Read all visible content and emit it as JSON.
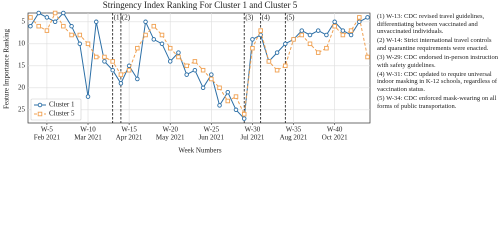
{
  "chart_data": {
    "type": "line",
    "title": "Stringency Index Ranking For Cluster 1 and Cluster 5",
    "x_label": "Week Numbers",
    "y_label": "Feature Importance Ranking",
    "x": [
      3,
      4,
      5,
      6,
      7,
      8,
      9,
      10,
      11,
      12,
      13,
      14,
      15,
      16,
      17,
      18,
      19,
      20,
      21,
      22,
      23,
      24,
      25,
      26,
      27,
      28,
      29,
      30,
      31,
      32,
      33,
      34,
      35,
      36,
      37,
      38,
      39,
      40,
      41,
      42,
      43,
      44
    ],
    "series": [
      {
        "name": "Cluster 1",
        "color": "#2c6fa6",
        "marker": "circle",
        "dashed": false,
        "values": [
          6,
          3,
          4,
          5,
          3,
          6,
          10,
          22,
          5,
          14,
          16,
          19,
          15,
          18,
          5,
          9,
          10,
          14,
          12,
          17,
          16,
          20,
          17,
          24,
          21,
          25,
          27,
          9,
          8,
          14,
          12,
          10,
          9,
          7,
          8,
          7,
          8,
          5,
          7,
          8,
          5,
          4
        ]
      },
      {
        "name": "Cluster 5",
        "color": "#f0a050",
        "marker": "square",
        "dashed": true,
        "values": [
          4,
          6,
          7,
          3,
          6,
          8,
          8,
          10,
          13,
          13,
          14,
          17,
          16,
          11,
          8,
          6,
          8,
          11,
          13,
          15,
          14,
          16,
          18,
          20,
          23,
          22,
          26,
          11,
          7,
          14,
          16,
          15,
          9,
          8,
          10,
          12,
          11,
          6,
          8,
          7,
          4,
          13
        ]
      }
    ],
    "xlim": [
      2.7,
      44.3
    ],
    "ylim": [
      3,
      28
    ],
    "y_inverted": true,
    "xticks": [
      {
        "value": 5,
        "label": "W-5"
      },
      {
        "value": 10,
        "label": "W-10"
      },
      {
        "value": 15,
        "label": "W-15"
      },
      {
        "value": 20,
        "label": "W-20"
      },
      {
        "value": 25,
        "label": "W-25"
      },
      {
        "value": 30,
        "label": "W-30"
      },
      {
        "value": 35,
        "label": "W-35"
      },
      {
        "value": 40,
        "label": "W-40"
      }
    ],
    "xtick_sublabels": [
      "Feb 2021",
      "Mar 2021",
      "Apr 2021",
      "May 2021",
      "Jun 2021",
      "Jul 2021",
      "Aug 2021",
      "Oct 2021"
    ],
    "yticks": [
      5,
      10,
      15,
      20,
      25
    ],
    "grid": true,
    "legend": "lower left",
    "events": [
      {
        "week": 13,
        "label": "(1)"
      },
      {
        "week": 14,
        "label": "(2)"
      },
      {
        "week": 29,
        "label": "(3)"
      },
      {
        "week": 31,
        "label": "(4)"
      },
      {
        "week": 34,
        "label": "(5)"
      }
    ],
    "notes": [
      "(1) W-13: CDC revised travel guidelines, differentiating between vaccinated and unvaccinated individuals.",
      "(2) W-14: Strict international travel controls and quarantine requirements were enacted.",
      "(3) W-29: CDC endorsed in-person instruction with safety guidelines.",
      "(4) W-31: CDC updated to require universal indoor masking in K-12 schools, regardless of vaccination status.",
      "(5) W-34: CDC enforced mask-wearing on all forms of public transportation."
    ]
  }
}
